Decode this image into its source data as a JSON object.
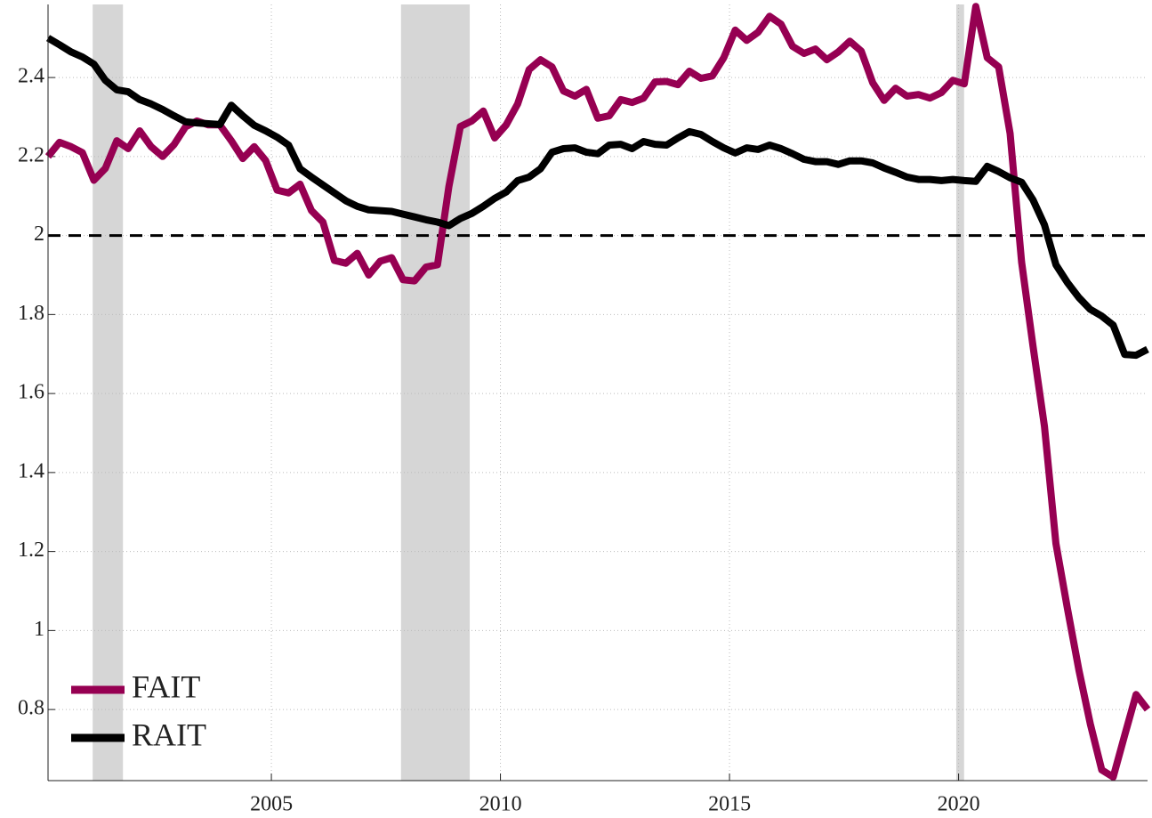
{
  "chart_data": {
    "type": "line",
    "x": [
      2000.125,
      2000.375,
      2000.625,
      2000.875,
      2001.125,
      2001.375,
      2001.625,
      2001.875,
      2002.125,
      2002.375,
      2002.625,
      2002.875,
      2003.125,
      2003.375,
      2003.625,
      2003.875,
      2004.125,
      2004.375,
      2004.625,
      2004.875,
      2005.125,
      2005.375,
      2005.625,
      2005.875,
      2006.125,
      2006.375,
      2006.625,
      2006.875,
      2007.125,
      2007.375,
      2007.625,
      2007.875,
      2008.125,
      2008.375,
      2008.625,
      2008.875,
      2009.125,
      2009.375,
      2009.625,
      2009.875,
      2010.125,
      2010.375,
      2010.625,
      2010.875,
      2011.125,
      2011.375,
      2011.625,
      2011.875,
      2012.125,
      2012.375,
      2012.625,
      2012.875,
      2013.125,
      2013.375,
      2013.625,
      2013.875,
      2014.125,
      2014.375,
      2014.625,
      2014.875,
      2015.125,
      2015.375,
      2015.625,
      2015.875,
      2016.125,
      2016.375,
      2016.625,
      2016.875,
      2017.125,
      2017.375,
      2017.625,
      2017.875,
      2018.125,
      2018.375,
      2018.625,
      2018.875,
      2019.125,
      2019.375,
      2019.625,
      2019.875,
      2020.125,
      2020.375,
      2020.625,
      2020.875,
      2021.125,
      2021.375,
      2021.625,
      2021.875,
      2022.125,
      2022.375,
      2022.625,
      2022.875,
      2023.125,
      2023.375,
      2023.625,
      2023.875,
      2024.125
    ],
    "series": [
      {
        "name": "FAIT",
        "color": "#960052",
        "values": [
          2.2,
          2.236,
          2.225,
          2.21,
          2.14,
          2.17,
          2.24,
          2.22,
          2.265,
          2.225,
          2.2,
          2.23,
          2.275,
          2.29,
          2.28,
          2.28,
          2.24,
          2.195,
          2.225,
          2.19,
          2.115,
          2.108,
          2.13,
          2.063,
          2.034,
          1.937,
          1.93,
          1.955,
          1.9,
          1.935,
          1.944,
          1.888,
          1.885,
          1.92,
          1.926,
          2.124,
          2.276,
          2.29,
          2.315,
          2.247,
          2.28,
          2.333,
          2.42,
          2.445,
          2.427,
          2.366,
          2.353,
          2.37,
          2.297,
          2.303,
          2.344,
          2.337,
          2.348,
          2.389,
          2.39,
          2.382,
          2.416,
          2.398,
          2.404,
          2.45,
          2.52,
          2.494,
          2.515,
          2.555,
          2.535,
          2.479,
          2.461,
          2.472,
          2.445,
          2.465,
          2.492,
          2.467,
          2.387,
          2.342,
          2.373,
          2.353,
          2.357,
          2.348,
          2.362,
          2.393,
          2.384,
          2.58,
          2.45,
          2.427,
          2.258,
          1.933,
          1.719,
          1.517,
          1.22,
          1.056,
          0.9,
          0.764,
          0.647,
          0.629,
          0.735,
          0.838,
          0.8
        ]
      },
      {
        "name": "RAIT",
        "color": "#000000",
        "values": [
          2.5,
          2.483,
          2.465,
          2.452,
          2.434,
          2.393,
          2.369,
          2.364,
          2.344,
          2.333,
          2.319,
          2.303,
          2.288,
          2.285,
          2.283,
          2.281,
          2.33,
          2.303,
          2.279,
          2.265,
          2.249,
          2.229,
          2.169,
          2.148,
          2.128,
          2.108,
          2.088,
          2.074,
          2.065,
          2.063,
          2.061,
          2.054,
          2.047,
          2.04,
          2.034,
          2.025,
          2.043,
          2.056,
          2.074,
          2.094,
          2.11,
          2.139,
          2.148,
          2.169,
          2.211,
          2.22,
          2.222,
          2.211,
          2.207,
          2.229,
          2.231,
          2.22,
          2.238,
          2.231,
          2.229,
          2.247,
          2.263,
          2.256,
          2.238,
          2.222,
          2.209,
          2.222,
          2.218,
          2.229,
          2.22,
          2.207,
          2.193,
          2.187,
          2.187,
          2.18,
          2.189,
          2.189,
          2.184,
          2.171,
          2.16,
          2.148,
          2.142,
          2.142,
          2.139,
          2.142,
          2.139,
          2.137,
          2.175,
          2.162,
          2.146,
          2.135,
          2.09,
          2.027,
          1.926,
          1.881,
          1.843,
          1.813,
          1.796,
          1.773,
          1.699,
          1.697,
          1.712
        ]
      }
    ],
    "xlim": [
      2000.125,
      2024.125
    ],
    "xticks": [
      2005,
      2010,
      2015,
      2020
    ],
    "ylim": [
      0.62,
      2.585
    ],
    "yticks": [
      0.8,
      1,
      1.2,
      1.4,
      1.6,
      1.8,
      2,
      2.2,
      2.4
    ],
    "shaded_regions": [
      [
        2001.1,
        2001.76
      ],
      [
        2007.83,
        2009.33
      ],
      [
        2019.95,
        2020.12
      ]
    ],
    "shade_color": "#d6d6d6",
    "hline": 2,
    "grid": true,
    "legend": "lower-left"
  }
}
